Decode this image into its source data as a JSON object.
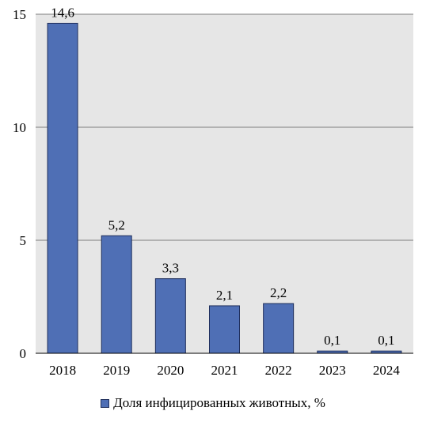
{
  "chart_data": {
    "type": "bar",
    "categories": [
      "2018",
      "2019",
      "2020",
      "2021",
      "2022",
      "2023",
      "2024"
    ],
    "values": [
      14.6,
      5.2,
      3.3,
      2.1,
      2.2,
      0.1,
      0.1
    ],
    "value_labels": [
      "14,6",
      "5,2",
      "3,3",
      "2,1",
      "2,2",
      "0,1",
      "0,1"
    ],
    "y_ticks": [
      0,
      5,
      10,
      15
    ],
    "y_tick_labels": [
      "0",
      "5",
      "10",
      "15"
    ],
    "ylim": [
      0,
      15
    ],
    "grid": true,
    "legend_position": "bottom",
    "series": [
      {
        "name": "Доля инфицированных животных, %"
      }
    ],
    "colors": {
      "bar": "#4f6fb5",
      "bar_border": "#1f2f5c",
      "plot_background": "#e6e6e6",
      "gridline": "#7f7f7f"
    }
  }
}
